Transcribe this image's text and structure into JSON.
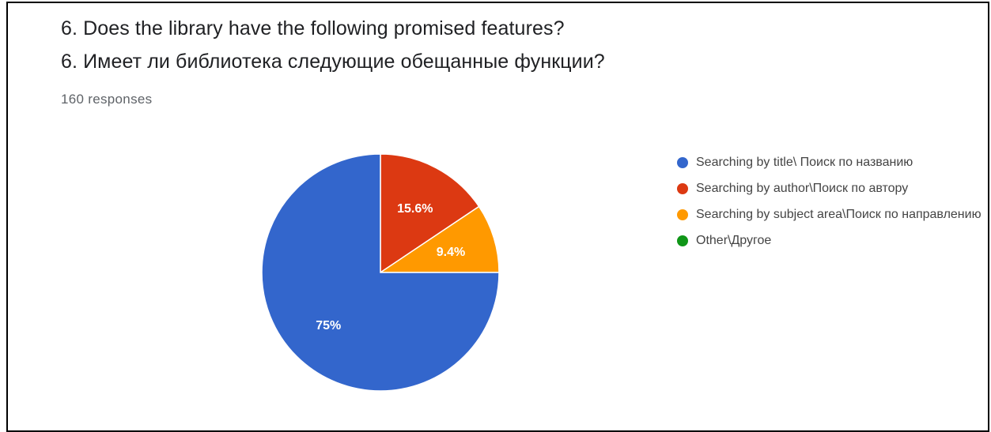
{
  "header": {
    "question_en": "6. Does the library have the following promised features?",
    "question_ru": "6. Имеет ли библиотека следующие обещанные функции?",
    "responses": "160 responses"
  },
  "chart_data": {
    "type": "pie",
    "title": "",
    "slices": [
      {
        "label": "Searching by title\\ Поиск по названию",
        "value": 75,
        "display": "75%",
        "color": "#3366cc"
      },
      {
        "label": "Searching by author\\Поиск по автору",
        "value": 15.6,
        "display": "15.6%",
        "color": "#dc3912"
      },
      {
        "label": "Searching by subject area\\Поиск по направлению",
        "value": 9.4,
        "display": "9.4%",
        "color": "#ff9900"
      },
      {
        "label": "Other\\Другое",
        "value": 0,
        "display": "",
        "color": "#109618"
      }
    ],
    "legend_position": "right"
  }
}
